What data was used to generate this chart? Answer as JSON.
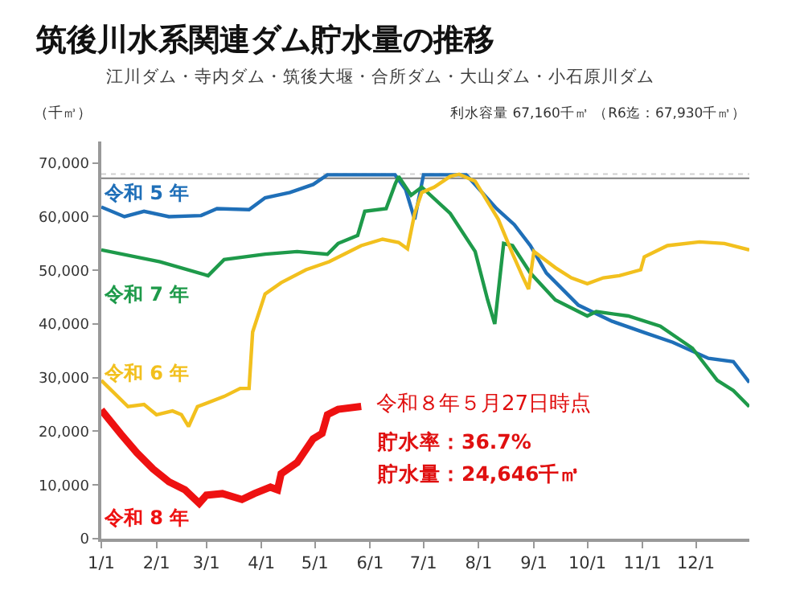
{
  "chart_data": {
    "type": "line",
    "title": "筑後川水系関連ダム貯水量の推移",
    "subtitle": "江川ダム・寺内ダム・筑後大堰・合所ダム・大山ダム・小石原川ダム",
    "ylabel": "（千㎥）",
    "annotations": [
      "利水容量 67,160千㎥ （R6迄：67,930千㎥）",
      "令和８年５月27日時点",
      "貯水率：36.7%",
      "貯水量：24,646千㎥"
    ],
    "xlim": [
      "--01-01",
      "--12-31"
    ],
    "xticks": [
      {
        "value": "--01-01",
        "label": "1/1"
      },
      {
        "value": "--02-01",
        "label": "2/1"
      },
      {
        "value": "--03-01",
        "label": "3/1"
      },
      {
        "value": "--04-01",
        "label": "4/1"
      },
      {
        "value": "--05-01",
        "label": "5/1"
      },
      {
        "value": "--06-01",
        "label": "6/1"
      },
      {
        "value": "--07-01",
        "label": "7/1"
      },
      {
        "value": "--08-01",
        "label": "8/1"
      },
      {
        "value": "--09-01",
        "label": "9/1"
      },
      {
        "value": "--10-01",
        "label": "10/1"
      },
      {
        "value": "--11-01",
        "label": "11/1"
      },
      {
        "value": "--12-01",
        "label": "12/1"
      }
    ],
    "ylim": [
      0,
      74000
    ],
    "yticks": [
      0,
      {
        "value": 10000,
        "label": "10,000"
      },
      {
        "value": 20000,
        "label": "20,000"
      },
      {
        "value": 30000,
        "label": "30,000"
      },
      {
        "value": 40000,
        "label": "40,000"
      },
      {
        "value": 50000,
        "label": "50,000"
      },
      {
        "value": 60000,
        "label": "60,000"
      },
      {
        "value": 70000,
        "label": "70,000"
      }
    ],
    "grid": false,
    "legend": false,
    "marker": "none",
    "line_style": "solid",
    "ref_lines": [
      {
        "axis": "y",
        "value": 67160,
        "color": "#7f7f7f",
        "line_style": "solid"
      },
      {
        "axis": "y",
        "value": 67930,
        "color": "#d0d0d0",
        "line_style": "dotted"
      }
    ],
    "series": [
      {
        "name": "令和 5 年",
        "color": "#1f6fb8",
        "x": [
          "--01-01",
          "--01-14",
          "--01-25",
          "--02-08",
          "--02-26",
          "--03-07",
          "--03-25",
          "--04-03",
          "--04-17",
          "--04-30",
          "--05-08",
          "--06-15",
          "--06-21",
          "--06-26",
          "--07-01",
          "--07-25",
          "--08-11",
          "--08-21",
          "--08-30",
          "--09-08",
          "--09-26",
          "--10-15",
          "--11-02",
          "--11-18",
          "--12-08",
          "--12-22",
          "--12-31"
        ],
        "values": [
          61800,
          60000,
          61000,
          60000,
          60200,
          61500,
          61300,
          63500,
          64500,
          66000,
          67800,
          67800,
          65000,
          59500,
          67800,
          67800,
          61500,
          58500,
          54600,
          49500,
          43500,
          40500,
          38400,
          36600,
          33600,
          33000,
          29100
        ]
      },
      {
        "name": "令和 7 年",
        "color": "#1e9a4a",
        "x": [
          "--01-01",
          "--02-03",
          "--03-02",
          "--03-11",
          "--04-03",
          "--04-21",
          "--05-08",
          "--05-14",
          "--05-25",
          "--05-29",
          "--06-10",
          "--06-15",
          "--06-17",
          "--06-24",
          "--06-30",
          "--07-16",
          "--07-30",
          "--08-06",
          "--08-10",
          "--08-15",
          "--08-20",
          "--08-30",
          "--09-13",
          "--10-01",
          "--10-06",
          "--10-24",
          "--11-11",
          "--11-29",
          "--12-13",
          "--12-22",
          "--12-31"
        ],
        "values": [
          53800,
          51600,
          49000,
          52000,
          53000,
          53500,
          53000,
          55000,
          56500,
          61000,
          61500,
          66000,
          67500,
          64000,
          65500,
          60600,
          53500,
          44500,
          40000,
          55000,
          54600,
          49500,
          44500,
          41500,
          42300,
          41500,
          39600,
          35500,
          29500,
          27600,
          24600
        ]
      },
      {
        "name": "令和 6 年",
        "color": "#f2c01e",
        "x": [
          "--01-01",
          "--01-16",
          "--01-25",
          "--02-01",
          "--02-10",
          "--02-15",
          "--02-19",
          "--02-24",
          "--03-11",
          "--03-20",
          "--03-25",
          "--03-27",
          "--04-03",
          "--04-12",
          "--04-26",
          "--05-09",
          "--05-18",
          "--05-27",
          "--06-08",
          "--06-17",
          "--06-22",
          "--06-26",
          "--06-30",
          "--07-07",
          "--07-16",
          "--07-21",
          "--07-30",
          "--08-12",
          "--08-20",
          "--08-26",
          "--08-29",
          "--09-01",
          "--09-13",
          "--09-22",
          "--10-01",
          "--10-10",
          "--10-19",
          "--10-31",
          "--11-02",
          "--11-15",
          "--12-03",
          "--12-17",
          "--12-31"
        ],
        "values": [
          29500,
          24600,
          25000,
          23100,
          23800,
          23100,
          20900,
          24600,
          26500,
          28000,
          28000,
          38500,
          45600,
          47700,
          50100,
          51600,
          53100,
          54600,
          55800,
          55200,
          54000,
          60600,
          64500,
          65500,
          67500,
          67900,
          66600,
          59500,
          53100,
          48600,
          46500,
          53500,
          50500,
          48600,
          47500,
          48600,
          49000,
          50100,
          52500,
          54600,
          55300,
          55000,
          53800
        ]
      },
      {
        "name": "令和 8 年",
        "color": "#ee1111",
        "x": [
          "--01-01",
          "--01-12",
          "--01-21",
          "--01-30",
          "--02-08",
          "--02-17",
          "--02-25",
          "--03-01",
          "--03-10",
          "--03-21",
          "--03-28",
          "--04-06",
          "--04-10",
          "--04-12",
          "--04-21",
          "--04-30",
          "--05-05",
          "--05-08",
          "--05-14",
          "--05-27"
        ],
        "values": [
          24000,
          19500,
          16000,
          13000,
          10600,
          9100,
          6600,
          8100,
          8400,
          7300,
          8400,
          9600,
          9100,
          12100,
          14200,
          18600,
          19600,
          23100,
          24100,
          24646
        ]
      }
    ]
  }
}
